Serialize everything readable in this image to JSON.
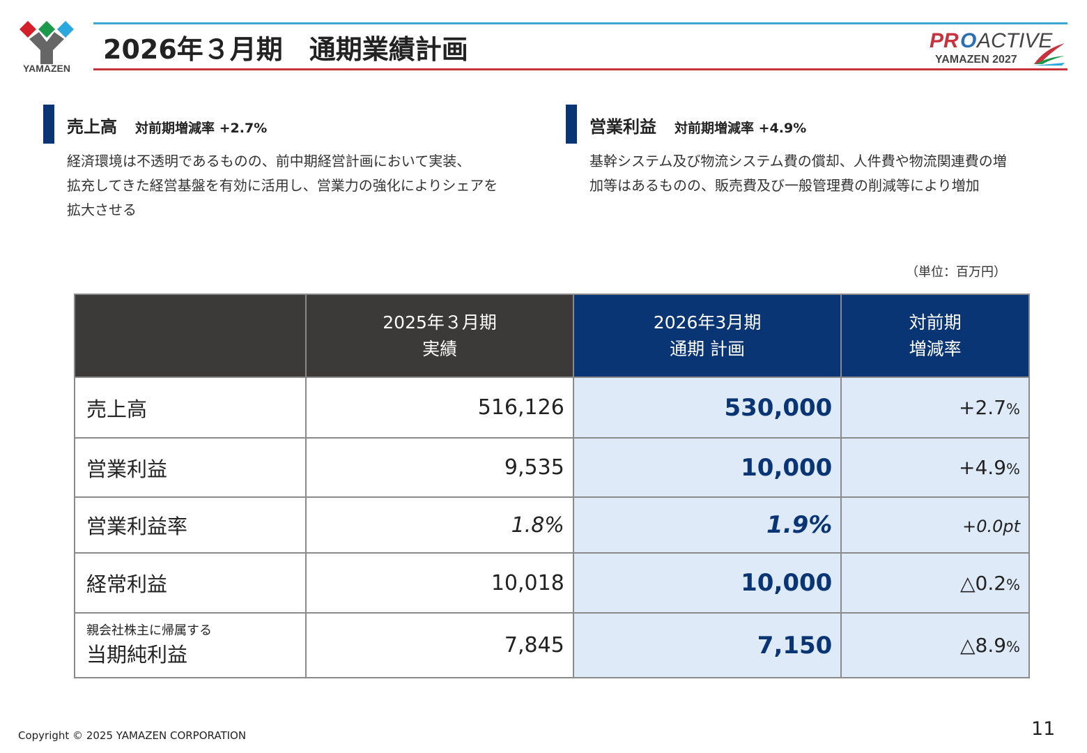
{
  "header": {
    "logo_text": "YAMAZEN",
    "title": "2026年３月期　通期業績計画",
    "brand_logo": "PROACTIVE YAMAZEN 2027"
  },
  "sections": [
    {
      "heading": "売上高",
      "subheading": "対前期増減率 +2.7%",
      "lines": [
        "経済環境は不透明であるものの、前中期経営計画において実装、",
        "拡充してきた経営基盤を有効に活用し、営業力の強化によりシェアを",
        "拡大させる"
      ]
    },
    {
      "heading": "営業利益",
      "subheading": "対前期増減率 +4.9%",
      "lines": [
        "基幹システム及び物流システム費の償却、人件費や物流関連費の増",
        "加等はあるものの、販売費及び一般管理費の削減等により増加"
      ]
    }
  ],
  "unit": "（単位：百万円）",
  "table": {
    "headers": [
      [
        "",
        ""
      ],
      [
        "2025年３月期",
        "実績"
      ],
      [
        "2026年3月期",
        "通期 計画"
      ],
      [
        "対前期",
        "増減率"
      ]
    ],
    "rows": [
      {
        "sub": "",
        "label": "売上高",
        "prev": "516,126",
        "plan": "530,000",
        "change": "+2.7",
        "unit": "%"
      },
      {
        "sub": "",
        "label": "営業利益",
        "prev": "9,535",
        "plan": "10,000",
        "change": "+4.9",
        "unit": "%"
      },
      {
        "sub": "",
        "label": "営業利益率",
        "prev": "1.8%",
        "plan": "1.9%",
        "change": "+0.0pt",
        "unit": ""
      },
      {
        "sub": "",
        "label": "経常利益",
        "prev": "10,018",
        "plan": "10,000",
        "change": "△0.2",
        "unit": "%"
      },
      {
        "sub": "親会社株主に帰属する",
        "label": "当期純利益",
        "prev": "7,845",
        "plan": "7,150",
        "change": "△8.9",
        "unit": "%"
      }
    ]
  },
  "footer": {
    "copyright": "Copyright © 2025 YAMAZEN CORPORATION",
    "page": "11"
  },
  "colors": {
    "navy": "#0a3575",
    "header_dark": "#3b3a39",
    "plan_bg": "#deeaf7",
    "accent_red": "#c8323c",
    "accent_blue": "#3aa7d3"
  }
}
